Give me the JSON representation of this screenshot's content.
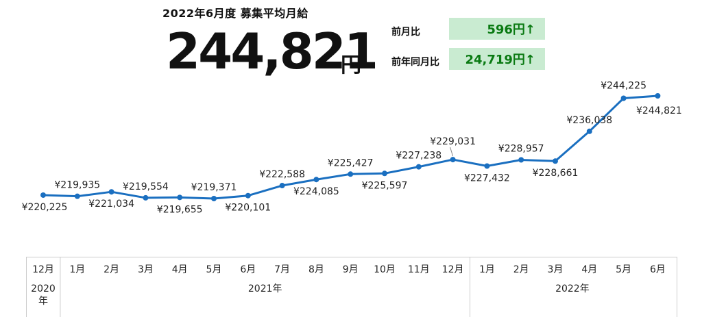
{
  "header": {
    "title": "2022年6月度 募集平均月給",
    "value": "244,821",
    "unit": "円"
  },
  "comparisons": [
    {
      "label": "前月比",
      "value": "596円↑"
    },
    {
      "label": "前年同月比",
      "value": "24,719円↑"
    }
  ],
  "colors": {
    "line": "#1a6fc0",
    "compare_bg": "#c9ebd1",
    "compare_text": "#0a7a12"
  },
  "chart_data": {
    "type": "line",
    "title": "2022年6月度 募集平均月給",
    "categories": [
      "12月",
      "1月",
      "2月",
      "3月",
      "4月",
      "5月",
      "6月",
      "7月",
      "8月",
      "9月",
      "10月",
      "11月",
      "12月",
      "1月",
      "2月",
      "3月",
      "4月",
      "5月",
      "6月"
    ],
    "year_groups": [
      {
        "label": "2020年",
        "start": 0,
        "end": 0
      },
      {
        "label": "2021年",
        "start": 1,
        "end": 12
      },
      {
        "label": "2022年",
        "start": 13,
        "end": 18
      }
    ],
    "values": [
      220225,
      219935,
      221034,
      219554,
      219655,
      219371,
      220101,
      222588,
      224085,
      225427,
      225597,
      227238,
      229031,
      227432,
      228957,
      228661,
      236038,
      244225,
      244821
    ],
    "labels": [
      "¥220,225",
      "¥219,935",
      "¥221,034",
      "¥219,554",
      "¥219,655",
      "¥219,371",
      "¥220,101",
      "¥222,588",
      "¥224,085",
      "¥225,427",
      "¥225,597",
      "¥227,238",
      "¥229,031",
      "¥227,432",
      "¥228,957",
      "¥228,661",
      "¥236,038",
      "¥244,225",
      "¥244,821"
    ],
    "label_positions": [
      "below",
      "above",
      "below",
      "above",
      "below",
      "above",
      "below",
      "above",
      "below",
      "above",
      "below",
      "above",
      "above",
      "below",
      "above",
      "below",
      "above",
      "above",
      "below"
    ],
    "ylim": [
      210000,
      250000
    ],
    "grid": false,
    "legend": "none"
  }
}
